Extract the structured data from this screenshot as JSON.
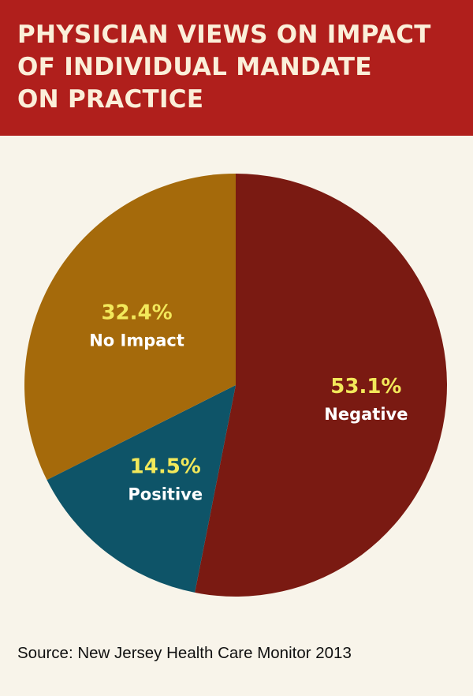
{
  "header": {
    "title": "PHYSICIAN VIEWS ON IMPACT\nOF INDIVIDUAL MANDATE\nON PRACTICE",
    "background_color": "#b01f1c"
  },
  "chart_data": {
    "type": "pie",
    "title": "PHYSICIAN VIEWS ON IMPACT OF INDIVIDUAL MANDATE ON PRACTICE",
    "slices": [
      {
        "label": "Negative",
        "value": 53.1,
        "value_label": "53.1%",
        "color": "#7a1a12"
      },
      {
        "label": "Positive",
        "value": 14.5,
        "value_label": "14.5%",
        "color": "#0e5468"
      },
      {
        "label": "No Impact",
        "value": 32.4,
        "value_label": "32.4%",
        "color": "#a56a0b"
      }
    ],
    "start_angle_deg": 0,
    "direction": "clockwise",
    "value_label_color": "#f2e85a",
    "category_label_color": "#ffffff"
  },
  "footer": {
    "source": "Source: New Jersey Health Care Monitor 2013"
  }
}
